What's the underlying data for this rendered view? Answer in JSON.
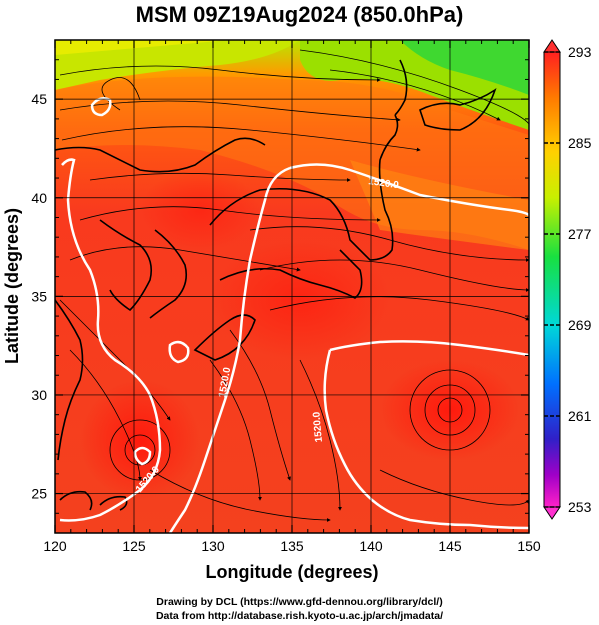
{
  "title": "MSM 09Z19Aug2024 (850.0hPa)",
  "axes": {
    "xlabel": "Longitude (degrees)",
    "ylabel": "Latitude  (degrees)",
    "xticks": [
      "120",
      "125",
      "130",
      "135",
      "140",
      "145",
      "150"
    ],
    "yticks": [
      "25",
      "30",
      "35",
      "40",
      "45"
    ],
    "xrange": [
      120,
      150
    ],
    "yrange": [
      23,
      48
    ]
  },
  "colorbar": {
    "ticks": [
      "293",
      "285",
      "277",
      "269",
      "261",
      "253"
    ],
    "range": [
      253,
      293
    ]
  },
  "contour_labels": [
    "1520.0",
    "1520.0",
    "1520.0",
    "1520.0"
  ],
  "credits": {
    "line1": "Drawing by DCL (https://www.gfd-dennou.org/library/dcl/)",
    "line2": "Data from http://database.rish.kyoto-u.ac.jp/arch/jmadata/"
  }
}
